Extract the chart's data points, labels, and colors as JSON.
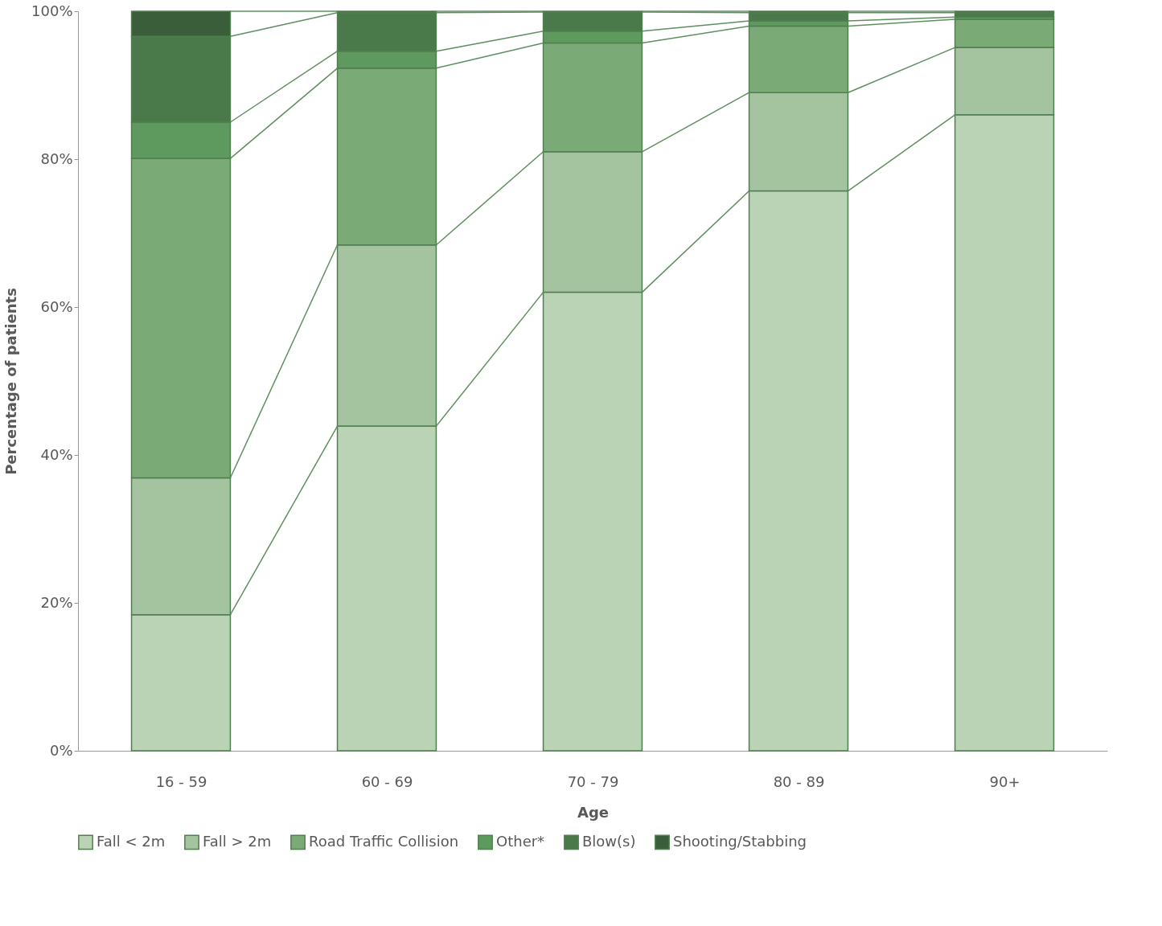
{
  "chart_data": {
    "type": "bar",
    "stacked": true,
    "xlabel": "Age",
    "ylabel": "Percentage of patients",
    "categories": [
      "16 - 59",
      "60 - 69",
      "70 - 79",
      "80 - 89",
      "90+"
    ],
    "series": [
      {
        "name": "Fall < 2m",
        "color": "#bbd3b5",
        "values": [
          18.4,
          43.9,
          62.0,
          75.7,
          86.0
        ]
      },
      {
        "name": "Fall > 2m",
        "color": "#a4c49f",
        "values": [
          18.5,
          24.5,
          19.0,
          13.3,
          9.1
        ]
      },
      {
        "name": "Road Traffic Collision",
        "color": "#7aab77",
        "values": [
          43.2,
          23.9,
          14.7,
          9.0,
          3.8
        ]
      },
      {
        "name": "Other*",
        "color": "#5e9a5d",
        "values": [
          4.9,
          2.3,
          1.6,
          0.7,
          0.3
        ]
      },
      {
        "name": "Blow(s)",
        "color": "#4a7a4a",
        "values": [
          11.6,
          5.2,
          2.6,
          1.1,
          0.6
        ]
      },
      {
        "name": "Shooting/Stabbing",
        "color": "#3a5e3a",
        "values": [
          3.4,
          0.2,
          0.1,
          0.2,
          0.2
        ]
      }
    ],
    "ylim": [
      0,
      100
    ],
    "yticks": [
      {
        "value": 0,
        "label": "0%"
      },
      {
        "value": 20,
        "label": "20%"
      },
      {
        "value": 40,
        "label": "40%"
      },
      {
        "value": 60,
        "label": "60%"
      },
      {
        "value": 80,
        "label": "80%"
      },
      {
        "value": 100,
        "label": "100%"
      }
    ],
    "grid": false,
    "legend": "bottom"
  }
}
